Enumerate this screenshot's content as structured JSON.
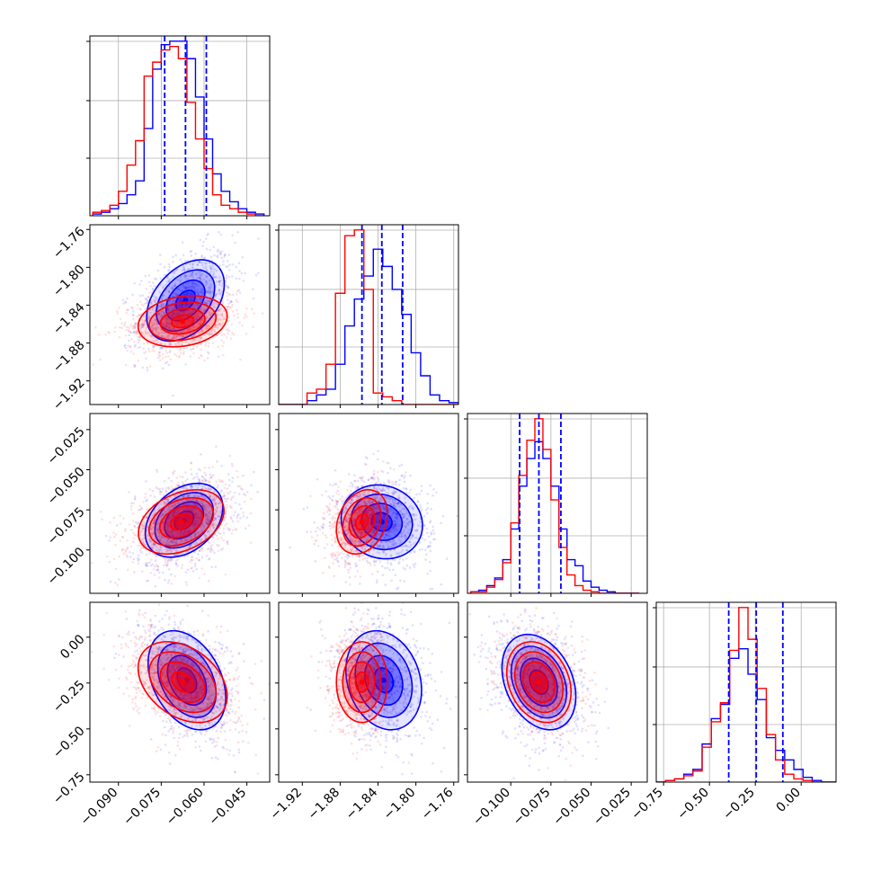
{
  "chart_data": {
    "type": "corner",
    "grid": true,
    "series": [
      {
        "name": "",
        "color": "#0000ff"
      },
      {
        "name": "",
        "color": "#ff0000"
      }
    ],
    "quantile_line_color": "#0000ff",
    "params": [
      {
        "range": [
          -0.1,
          -0.037
        ],
        "ticks": [
          -0.09,
          -0.075,
          -0.06,
          -0.045
        ],
        "tick_labels": [
          "−0.090",
          "−0.075",
          "−0.060",
          "−0.045"
        ],
        "quantiles": [
          -0.0738,
          -0.0665,
          -0.0592
        ],
        "hist": {
          "start": -0.099,
          "width": 0.003,
          "blue": [
            0.01,
            0.02,
            0.04,
            0.07,
            0.12,
            0.2,
            0.5,
            0.84,
            0.98,
            1.0,
            1.0,
            0.9,
            0.68,
            0.44,
            0.24,
            0.14,
            0.08,
            0.04,
            0.02,
            0.01
          ],
          "red": [
            0.02,
            0.03,
            0.06,
            0.14,
            0.29,
            0.43,
            0.8,
            0.88,
            0.95,
            0.97,
            0.9,
            0.65,
            0.44,
            0.27,
            0.12,
            0.06,
            0.04,
            0.02,
            0.01,
            0.0
          ]
        }
      },
      {
        "range": [
          -1.945,
          -1.755
        ],
        "ticks": [
          -1.92,
          -1.88,
          -1.84,
          -1.8,
          -1.76
        ],
        "tick_labels": [
          "−1.92",
          "−1.88",
          "−1.84",
          "−1.80",
          "−1.76"
        ],
        "quantiles": [
          -1.857,
          -1.836,
          -1.814
        ],
        "hist": {
          "start": -1.945,
          "width": 0.01,
          "blue": [
            0.0,
            0.0,
            0.0,
            0.02,
            0.05,
            0.08,
            0.21,
            0.41,
            0.55,
            0.67,
            0.81,
            0.72,
            0.6,
            0.47,
            0.27,
            0.15,
            0.05,
            0.02,
            0.01
          ],
          "red": [
            0.0,
            0.0,
            0.0,
            0.06,
            0.08,
            0.21,
            0.58,
            0.88,
            0.91,
            0.6,
            0.06,
            0.04,
            0.02,
            0.0,
            0.0,
            0.0,
            0.0,
            0.0,
            0.0
          ]
        }
      },
      {
        "range": [
          -0.127,
          -0.015
        ],
        "ticks": [
          -0.1,
          -0.075,
          -0.05,
          -0.025
        ],
        "tick_labels": [
          "−0.100",
          "−0.075",
          "−0.050",
          "−0.025"
        ],
        "quantiles": [
          -0.0945,
          -0.0825,
          -0.0688
        ],
        "hist": {
          "start": -0.125,
          "width": 0.005,
          "blue": [
            0.01,
            0.02,
            0.05,
            0.1,
            0.22,
            0.42,
            0.7,
            0.88,
            0.99,
            0.88,
            0.7,
            0.42,
            0.22,
            0.18,
            0.08,
            0.04,
            0.02,
            0.01,
            0.0,
            0.0,
            0.0
          ],
          "red": [
            0.01,
            0.01,
            0.04,
            0.09,
            0.2,
            0.46,
            0.77,
            1.0,
            1.14,
            0.94,
            0.61,
            0.3,
            0.12,
            0.05,
            0.02,
            0.01,
            0.0,
            0.0,
            0.0,
            0.0,
            0.0
          ]
        }
      },
      {
        "range": [
          -0.79,
          0.19
        ],
        "ticks": [
          -0.75,
          -0.5,
          -0.25,
          0.0
        ],
        "tick_labels": [
          "−0.75",
          "−0.50",
          "−0.25",
          "0.00"
        ],
        "quantiles": [
          -0.395,
          -0.245,
          -0.1
        ],
        "hist": {
          "start": -0.79,
          "width": 0.05,
          "blue": [
            0.0,
            0.01,
            0.02,
            0.05,
            0.08,
            0.24,
            0.4,
            0.49,
            0.78,
            0.84,
            0.68,
            0.52,
            0.28,
            0.2,
            0.14,
            0.08,
            0.03,
            0.01,
            0.0,
            0.0
          ],
          "red": [
            0.0,
            0.01,
            0.02,
            0.04,
            0.07,
            0.22,
            0.38,
            0.5,
            0.83,
            1.1,
            0.9,
            0.59,
            0.3,
            0.14,
            0.05,
            0.02,
            0.01,
            0.0,
            0.0,
            0.0
          ]
        }
      }
    ],
    "blobs": [
      {
        "row": 1,
        "col": 0,
        "blue": {
          "mean": [
            -0.0665,
            -1.835
          ],
          "sd": [
            0.0068,
            0.0215
          ],
          "corr": 0.4
        },
        "red": {
          "mean": [
            -0.0675,
            -1.857
          ],
          "sd": [
            0.0078,
            0.0135
          ],
          "corr": 0.2
        }
      },
      {
        "row": 2,
        "col": 0,
        "blue": {
          "mean": [
            -0.067,
            -0.0815
          ],
          "sd": [
            0.0068,
            0.0115
          ],
          "corr": 0.35
        },
        "red": {
          "mean": [
            -0.068,
            -0.0825
          ],
          "sd": [
            0.0075,
            0.01
          ],
          "corr": 0.35
        }
      },
      {
        "row": 2,
        "col": 1,
        "blue": {
          "mean": [
            -1.836,
            -0.0825
          ],
          "sd": [
            0.0215,
            0.0115
          ],
          "corr": -0.1
        },
        "red": {
          "mean": [
            -1.857,
            -0.0825
          ],
          "sd": [
            0.0135,
            0.01
          ],
          "corr": 0.25
        }
      },
      {
        "row": 3,
        "col": 0,
        "blue": {
          "mean": [
            -0.066,
            -0.235
          ],
          "sd": [
            0.0068,
            0.135
          ],
          "corr": -0.35
        },
        "red": {
          "mean": [
            -0.0675,
            -0.245
          ],
          "sd": [
            0.0078,
            0.11
          ],
          "corr": -0.35
        }
      },
      {
        "row": 3,
        "col": 1,
        "blue": {
          "mean": [
            -1.834,
            -0.235
          ],
          "sd": [
            0.02,
            0.135
          ],
          "corr": -0.2
        },
        "red": {
          "mean": [
            -1.857,
            -0.245
          ],
          "sd": [
            0.0135,
            0.11
          ],
          "corr": 0.0
        }
      },
      {
        "row": 3,
        "col": 2,
        "blue": {
          "mean": [
            -0.0825,
            -0.245
          ],
          "sd": [
            0.0115,
            0.13
          ],
          "corr": -0.3
        },
        "red": {
          "mean": [
            -0.0825,
            -0.245
          ],
          "sd": [
            0.01,
            0.11
          ],
          "corr": -0.25
        }
      }
    ]
  }
}
